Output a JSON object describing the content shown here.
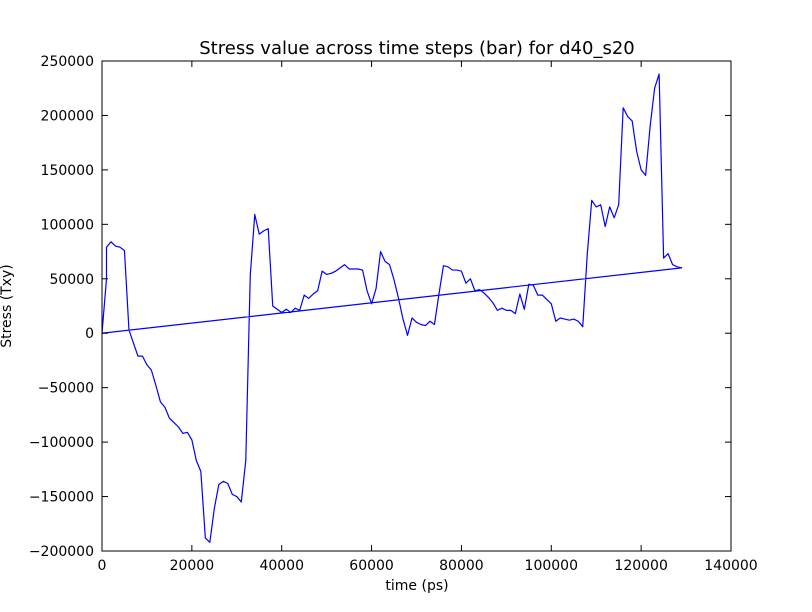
{
  "chart_data": {
    "type": "line",
    "title": "Stress value across time steps (bar) for d40_s20",
    "xlabel": "time (ps)",
    "ylabel": "Stress (Txy)",
    "xlim": [
      0,
      140000
    ],
    "ylim": [
      -200000,
      250000
    ],
    "xticks": [
      0,
      20000,
      40000,
      60000,
      80000,
      100000,
      120000,
      140000
    ],
    "yticks": [
      -200000,
      -150000,
      -100000,
      -50000,
      0,
      50000,
      100000,
      150000,
      200000,
      250000
    ],
    "xtick_labels": [
      "0",
      "20000",
      "40000",
      "60000",
      "80000",
      "100000",
      "120000",
      "140000"
    ],
    "ytick_labels": [
      "−200000",
      "−150000",
      "−100000",
      "−50000",
      "0",
      "50000",
      "100000",
      "150000",
      "200000",
      "250000"
    ],
    "grid": false,
    "legend": "none",
    "series": [
      {
        "color": "#0000ff",
        "points": [
          [
            0,
            0
          ],
          [
            1000,
            50000
          ],
          [
            1000,
            79000
          ],
          [
            2000,
            84000
          ],
          [
            3000,
            80000
          ],
          [
            4000,
            79000
          ],
          [
            5000,
            76000
          ],
          [
            6000,
            3000
          ],
          [
            7000,
            -9000
          ],
          [
            8000,
            -21000
          ],
          [
            9000,
            -21000
          ],
          [
            10000,
            -29000
          ],
          [
            11000,
            -34000
          ],
          [
            12000,
            -48000
          ],
          [
            13000,
            -63000
          ],
          [
            14000,
            -68000
          ],
          [
            15000,
            -78000
          ],
          [
            16000,
            -82000
          ],
          [
            17000,
            -86000
          ],
          [
            18000,
            -92000
          ],
          [
            19000,
            -91000
          ],
          [
            20000,
            -98000
          ],
          [
            21000,
            -117000
          ],
          [
            22000,
            -127000
          ],
          [
            23000,
            -188000
          ],
          [
            24000,
            -192000
          ],
          [
            25000,
            -161000
          ],
          [
            26000,
            -139000
          ],
          [
            27000,
            -136000
          ],
          [
            28000,
            -138000
          ],
          [
            29000,
            -148000
          ],
          [
            30000,
            -150000
          ],
          [
            31000,
            -155000
          ],
          [
            32000,
            -117000
          ],
          [
            33000,
            53000
          ],
          [
            34000,
            109000
          ],
          [
            35000,
            91000
          ],
          [
            36000,
            94000
          ],
          [
            37000,
            96000
          ],
          [
            38000,
            25000
          ],
          [
            39000,
            22000
          ],
          [
            40000,
            19000
          ],
          [
            41000,
            22000
          ],
          [
            42000,
            19000
          ],
          [
            43000,
            23000
          ],
          [
            44000,
            21000
          ],
          [
            45000,
            35000
          ],
          [
            46000,
            32000
          ],
          [
            47000,
            36000
          ],
          [
            48000,
            39000
          ],
          [
            49000,
            57000
          ],
          [
            50000,
            54000
          ],
          [
            51000,
            55000
          ],
          [
            52000,
            57000
          ],
          [
            53000,
            60000
          ],
          [
            54000,
            63000
          ],
          [
            55000,
            59000
          ],
          [
            56000,
            59000
          ],
          [
            57000,
            59000
          ],
          [
            58000,
            58000
          ],
          [
            59000,
            39000
          ],
          [
            60000,
            27000
          ],
          [
            61000,
            41000
          ],
          [
            62000,
            75000
          ],
          [
            63000,
            66000
          ],
          [
            64000,
            63000
          ],
          [
            65000,
            49000
          ],
          [
            66000,
            32000
          ],
          [
            67000,
            13000
          ],
          [
            68000,
            -2000
          ],
          [
            69000,
            14000
          ],
          [
            70000,
            10000
          ],
          [
            71000,
            8000
          ],
          [
            72000,
            7000
          ],
          [
            73000,
            11000
          ],
          [
            74000,
            8000
          ],
          [
            75000,
            36000
          ],
          [
            76000,
            62000
          ],
          [
            77000,
            61000
          ],
          [
            78000,
            58000
          ],
          [
            79000,
            58000
          ],
          [
            80000,
            57000
          ],
          [
            81000,
            46000
          ],
          [
            82000,
            50000
          ],
          [
            83000,
            39000
          ],
          [
            84000,
            40000
          ],
          [
            85000,
            37000
          ],
          [
            86000,
            33000
          ],
          [
            87000,
            28000
          ],
          [
            88000,
            21000
          ],
          [
            89000,
            23000
          ],
          [
            90000,
            21000
          ],
          [
            91000,
            21000
          ],
          [
            92000,
            18000
          ],
          [
            93000,
            36000
          ],
          [
            94000,
            22000
          ],
          [
            95000,
            45000
          ],
          [
            96000,
            44000
          ],
          [
            97000,
            35000
          ],
          [
            98000,
            35000
          ],
          [
            99000,
            31000
          ],
          [
            100000,
            27000
          ],
          [
            101000,
            11000
          ],
          [
            102000,
            14000
          ],
          [
            103000,
            13000
          ],
          [
            104000,
            12000
          ],
          [
            105000,
            13000
          ],
          [
            106000,
            11000
          ],
          [
            107000,
            6000
          ],
          [
            108000,
            72000
          ],
          [
            109000,
            122000
          ],
          [
            110000,
            116000
          ],
          [
            111000,
            118000
          ],
          [
            112000,
            98000
          ],
          [
            113000,
            116000
          ],
          [
            114000,
            106000
          ],
          [
            115000,
            118000
          ],
          [
            116000,
            207000
          ],
          [
            117000,
            199000
          ],
          [
            118000,
            195000
          ],
          [
            119000,
            167000
          ],
          [
            120000,
            150000
          ],
          [
            121000,
            145000
          ],
          [
            122000,
            190000
          ],
          [
            123000,
            225000
          ],
          [
            124000,
            238000
          ],
          [
            125000,
            69000
          ],
          [
            126000,
            73000
          ],
          [
            127000,
            63000
          ],
          [
            128000,
            61000
          ],
          [
            129000,
            60000
          ],
          [
            0,
            0
          ]
        ]
      }
    ]
  }
}
